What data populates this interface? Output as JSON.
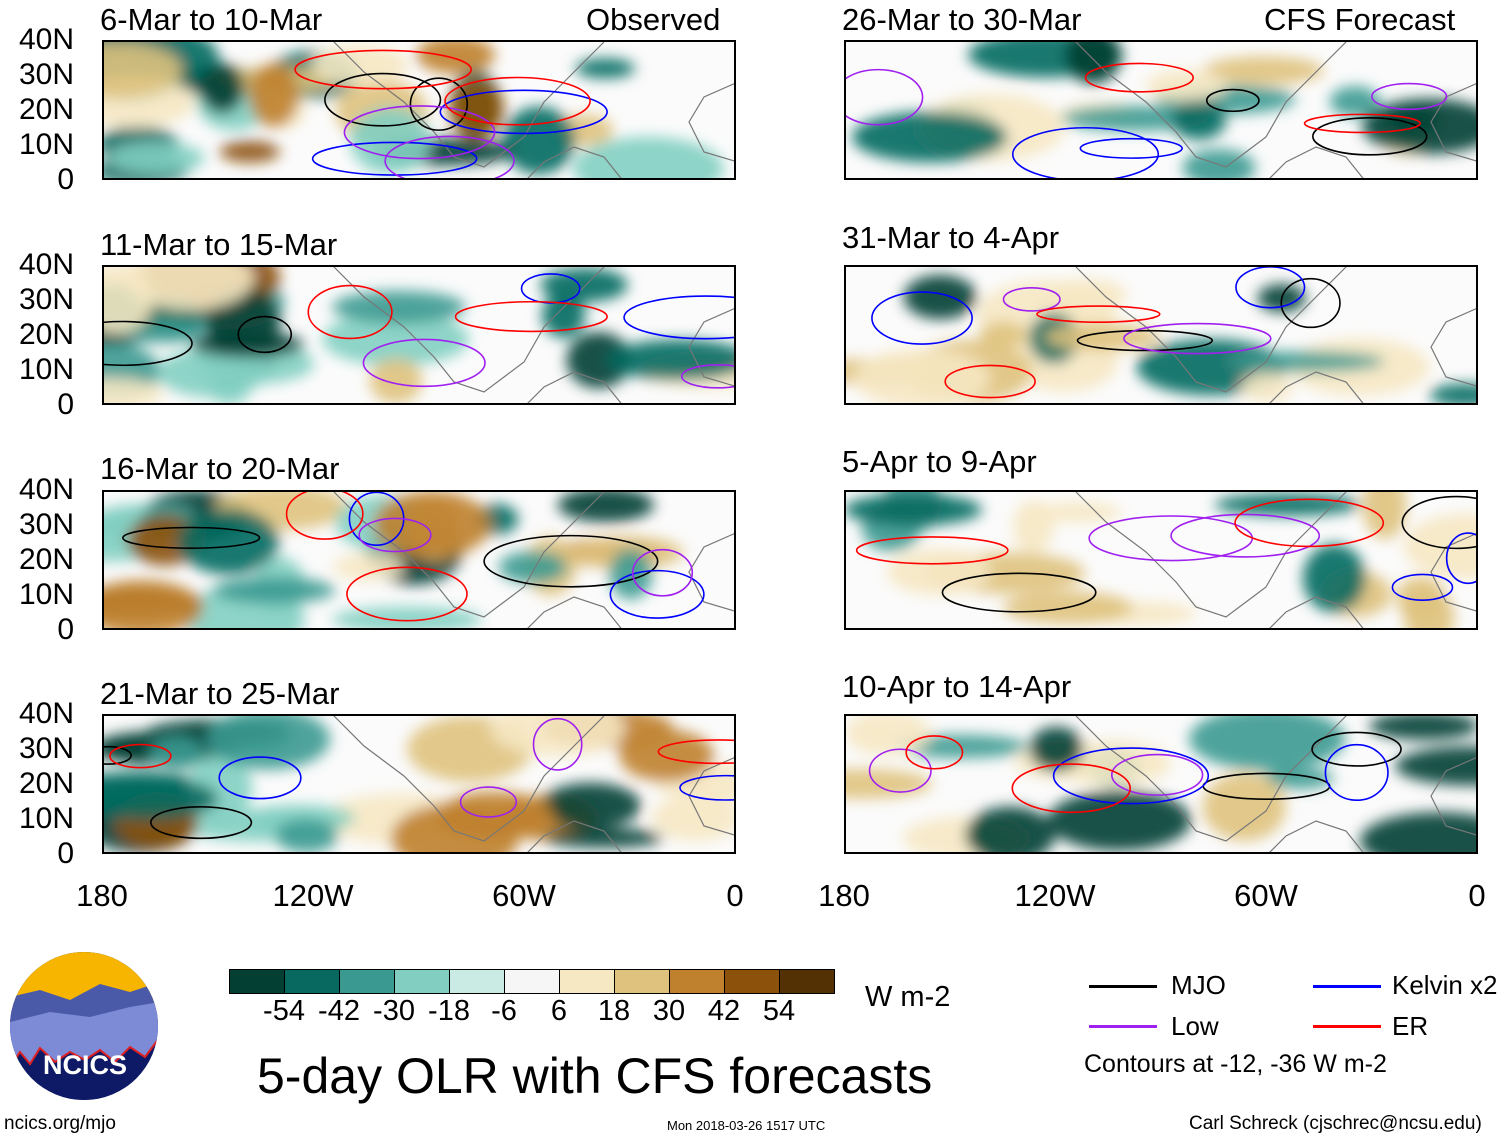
{
  "title": "5-day OLR with CFS forecasts",
  "left_column_label": "Observed",
  "right_column_label": "CFS Forecast",
  "panels_left": [
    "6-Mar to 10-Mar",
    "11-Mar to 15-Mar",
    "16-Mar to 20-Mar",
    "21-Mar to 25-Mar"
  ],
  "panels_right": [
    "26-Mar to 30-Mar",
    "31-Mar to 4-Apr",
    "5-Apr to 9-Apr",
    "10-Apr to 14-Apr"
  ],
  "lat_labels": [
    "40N",
    "30N",
    "20N",
    "10N",
    "0"
  ],
  "lon_labels": [
    "180",
    "120W",
    "60W",
    "0"
  ],
  "colorbar": {
    "colors": [
      "#033f33",
      "#07695f",
      "#3a9a91",
      "#82cfc2",
      "#c9ebe4",
      "#f6f6f6",
      "#f6e8c3",
      "#dfc27d",
      "#bf812d",
      "#8c510a",
      "#543005"
    ],
    "labels": [
      "-54",
      "-42",
      "-30",
      "-18",
      "-6",
      "6",
      "18",
      "30",
      "42",
      "54"
    ],
    "units": "W m-2"
  },
  "legend": {
    "items": [
      {
        "label": "MJO",
        "color": "#000000"
      },
      {
        "label": "Kelvin x2",
        "color": "#0000ff"
      },
      {
        "label": "Low",
        "color": "#a020f0"
      },
      {
        "label": "ER",
        "color": "#ff0000"
      }
    ],
    "note": "Contours at -12, -36 W m-2"
  },
  "logo_text": "NCICS",
  "footer": {
    "url": "ncics.org/mjo",
    "timestamp": "Mon 2018-03-26 1517 UTC",
    "credit": "Carl Schreck (cjschrec@ncsu.edu)"
  }
}
